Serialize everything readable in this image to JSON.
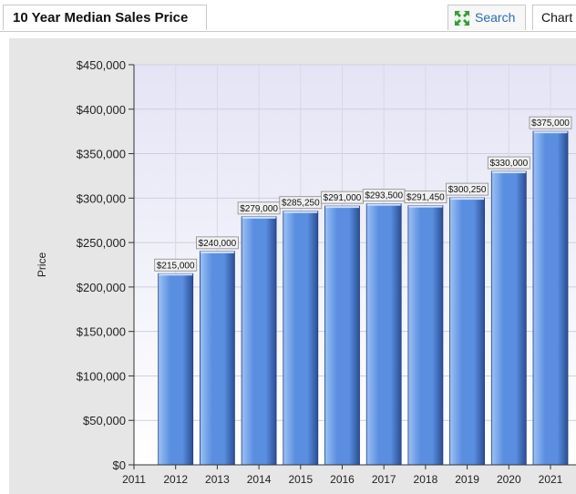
{
  "header": {
    "title": "10 Year Median Sales Price",
    "search_label": "Search",
    "search_icon": "expand-arrows-icon",
    "chart_label": "Chart"
  },
  "colors": {
    "bar_light": "#9cc2f5",
    "bar_mid": "#5a8ee0",
    "bar_dark": "#2a4f94",
    "plot_bg_top": "#e4e4f6",
    "plot_bg_bottom": "#ffffff",
    "link": "#2b6cb0"
  },
  "chart_data": {
    "type": "bar",
    "title": "",
    "xlabel": "",
    "ylabel": "Price",
    "x_ticks": [
      "2011",
      "2012",
      "2013",
      "2014",
      "2015",
      "2016",
      "2017",
      "2018",
      "2019",
      "2020",
      "2021"
    ],
    "categories": [
      "2012",
      "2013",
      "2014",
      "2015",
      "2016",
      "2017",
      "2018",
      "2019",
      "2020",
      "2021"
    ],
    "values": [
      215000,
      240000,
      279000,
      285250,
      291000,
      293500,
      291450,
      300250,
      330000,
      375000
    ],
    "data_labels": [
      "$215,000",
      "$240,000",
      "$279,000",
      "$285,250",
      "$291,000",
      "$293,500",
      "$291,450",
      "$300,250",
      "$330,000",
      "$375,000"
    ],
    "y_ticks": [
      "$0",
      "$50,000",
      "$100,000",
      "$150,000",
      "$200,000",
      "$250,000",
      "$300,000",
      "$350,000",
      "$400,000",
      "$450,000"
    ],
    "ylim": [
      0,
      450000
    ],
    "grid": true,
    "legend": "none"
  }
}
